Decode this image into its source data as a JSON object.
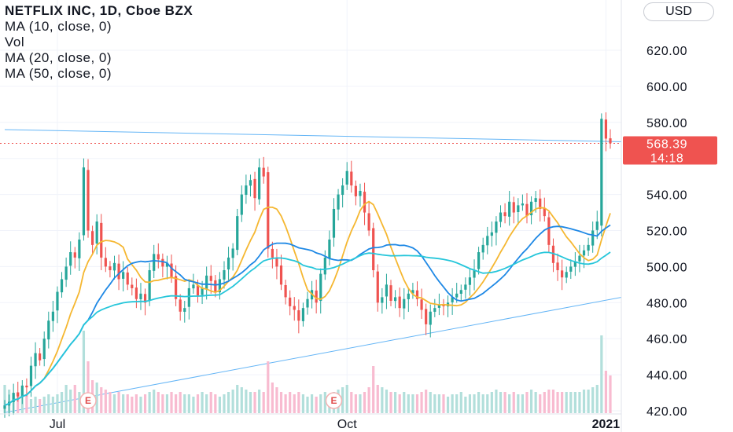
{
  "legend": {
    "title": "NETFLIX INC, 1D, Cboe BZX",
    "ma10": "MA (10, close, 0)",
    "vol": "Vol",
    "ma20": "MA (20, close, 0)",
    "ma50": "MA (50, close, 0)"
  },
  "currency": "USD",
  "price_badge": {
    "price": "568.39",
    "countdown": "14:18"
  },
  "colors": {
    "up": "#26a69a",
    "down": "#ef5350",
    "ma10": "#f5b731",
    "ma20": "#1e88e5",
    "ma50": "#26c6da",
    "trend": "#64b5f6",
    "volume_up": "#b2dfdb",
    "volume_down": "#f8bbd0"
  },
  "chart_data": {
    "type": "candlestick",
    "title": "NETFLIX INC, 1D, Cboe BZX",
    "ylim": [
      418,
      636
    ],
    "y_ticks": [
      420,
      440,
      460,
      480,
      500,
      520,
      540,
      560,
      580,
      600,
      620
    ],
    "y_tick_labels": [
      "420.00",
      "440.00",
      "460.00",
      "480.00",
      "500.00",
      "520.00",
      "540.00",
      "560.00",
      "580.00",
      "600.00",
      "620.00"
    ],
    "x_labels": [
      {
        "label": "Jul",
        "day": 12
      },
      {
        "label": "Oct",
        "day": 78
      },
      {
        "label": "2021",
        "day": 137,
        "bold": true
      }
    ],
    "last_price": 568.39,
    "earnings_days": [
      19,
      75,
      147
    ],
    "earnings_label": "E",
    "trend_lines": [
      {
        "from": [
          0,
          576
        ],
        "to": [
          167,
          568
        ]
      },
      {
        "from": [
          0,
          419
        ],
        "to": [
          167,
          495
        ]
      }
    ],
    "closes": [
      423,
      425,
      430,
      428,
      434,
      433,
      445,
      452,
      448,
      460,
      470,
      475,
      486,
      493,
      500,
      508,
      505,
      515,
      555,
      520,
      512,
      525,
      505,
      500,
      498,
      502,
      493,
      497,
      490,
      488,
      482,
      485,
      480,
      498,
      507,
      504,
      500,
      502,
      494,
      482,
      475,
      477,
      488,
      490,
      484,
      488,
      495,
      492,
      486,
      493,
      498,
      505,
      510,
      528,
      540,
      545,
      548,
      538,
      555,
      550,
      510,
      505,
      500,
      490,
      483,
      478,
      476,
      470,
      477,
      482,
      487,
      480,
      496,
      505,
      515,
      532,
      540,
      545,
      553,
      545,
      539,
      542,
      530,
      520,
      498,
      480,
      483,
      490,
      481,
      483,
      477,
      482,
      485,
      487,
      482,
      476,
      468,
      475,
      477,
      479,
      478,
      480,
      483,
      485,
      487,
      490,
      494,
      498,
      508,
      512,
      517,
      519,
      525,
      530,
      528,
      536,
      530,
      534,
      535,
      528,
      536,
      538,
      532,
      528,
      512,
      502,
      498,
      494,
      497,
      500,
      503,
      506,
      509,
      512,
      520,
      525,
      582,
      571,
      568.39
    ],
    "volume": [
      12,
      10,
      8,
      9,
      7,
      8,
      6,
      7,
      6,
      7,
      8,
      7,
      8,
      9,
      12,
      10,
      12,
      9,
      35,
      22,
      14,
      13,
      11,
      10,
      9,
      8,
      9,
      8,
      8,
      7,
      8,
      7,
      8,
      9,
      10,
      9,
      8,
      8,
      9,
      8,
      9,
      8,
      8,
      7,
      8,
      9,
      8,
      9,
      8,
      7,
      8,
      9,
      10,
      12,
      11,
      10,
      9,
      9,
      10,
      9,
      22,
      13,
      11,
      9,
      8,
      9,
      8,
      9,
      8,
      7,
      8,
      7,
      8,
      9,
      8,
      9,
      10,
      11,
      12,
      9,
      8,
      8,
      9,
      11,
      20,
      12,
      11,
      10,
      9,
      9,
      8,
      9,
      8,
      8,
      8,
      9,
      10,
      9,
      8,
      8,
      8,
      7,
      8,
      8,
      9,
      7,
      8,
      8,
      9,
      8,
      8,
      9,
      10,
      9,
      9,
      8,
      9,
      8,
      8,
      9,
      10,
      9,
      8,
      9,
      10,
      10,
      9,
      9,
      9,
      9,
      9,
      9,
      10,
      10,
      11,
      12,
      33,
      18,
      16
    ]
  }
}
